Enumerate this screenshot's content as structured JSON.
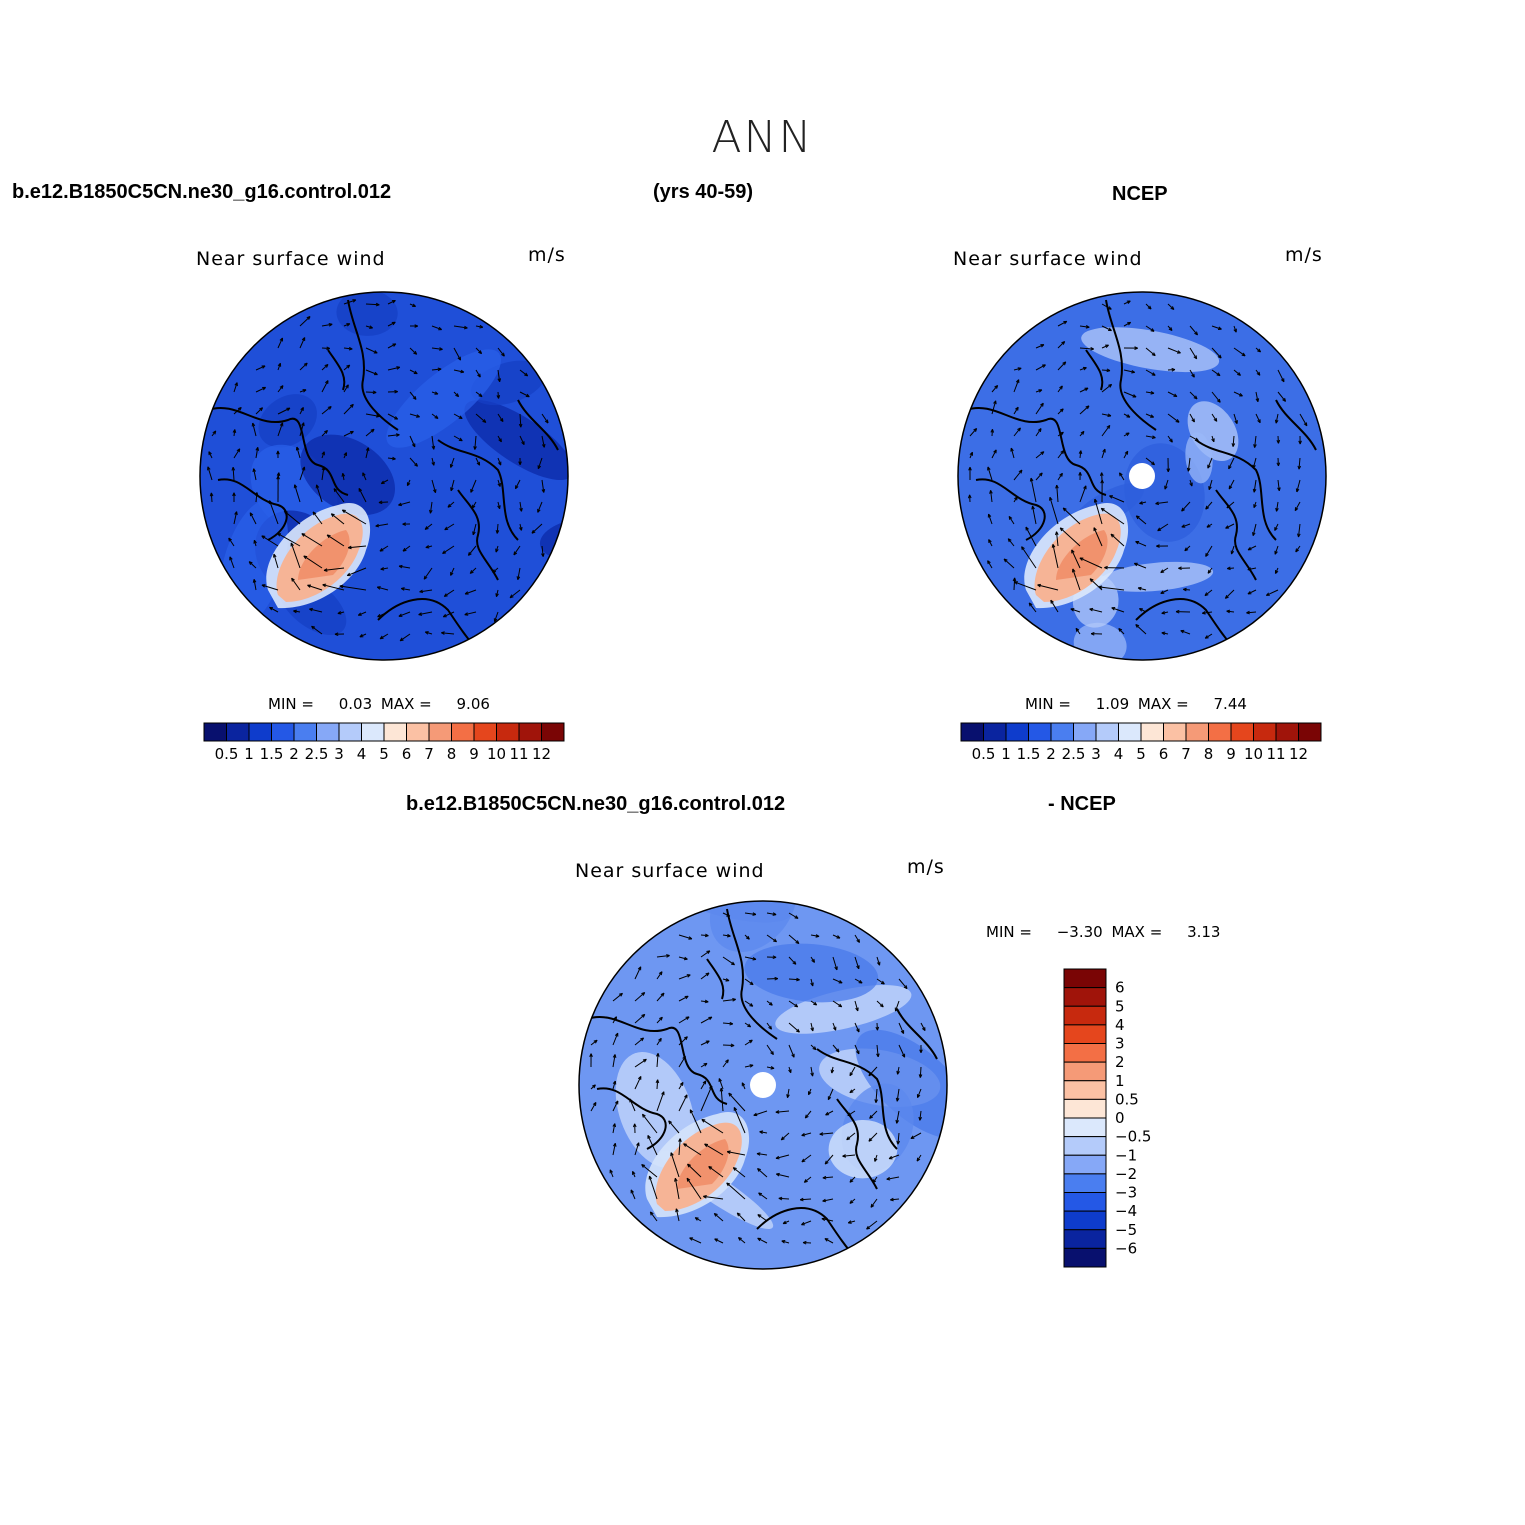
{
  "title": "ANN",
  "case_name": "b.e12.B1850C5CN.ne30_g16.control.012",
  "years": "(yrs 40-59)",
  "obs_name": "NCEP",
  "diff_case_name": "b.e12.B1850C5CN.ne30_g16.control.012",
  "diff_obs_name": "- NCEP",
  "panels": [
    {
      "id": "model",
      "field_label": "Near surface wind",
      "units": "m/s",
      "min_label": "MIN =",
      "min_value": "0.03",
      "max_label": "MAX =",
      "max_value": "9.06",
      "has_pole_hole": false
    },
    {
      "id": "obs",
      "field_label": "Near surface wind",
      "units": "m/s",
      "min_label": "MIN =",
      "min_value": "1.09",
      "max_label": "MAX =",
      "max_value": "7.44",
      "has_pole_hole": true
    },
    {
      "id": "diff",
      "field_label": "Near surface wind",
      "units": "m/s",
      "min_label": "MIN =",
      "min_value": "-3.30",
      "max_label": "MAX =",
      "max_value": "3.13",
      "has_pole_hole": true
    }
  ],
  "colorbar_abs": {
    "colors": [
      "#08106e",
      "#0a249f",
      "#0e3ccc",
      "#2458e6",
      "#4a7ef0",
      "#86a8f7",
      "#b4cbfa",
      "#dbe8fc",
      "#fde6d6",
      "#fbc1a4",
      "#f59a77",
      "#f36f45",
      "#e5461d",
      "#c7290e",
      "#a0140a",
      "#7a0505"
    ],
    "labels": [
      "0.5",
      "1",
      "1.5",
      "2",
      "2.5",
      "3",
      "4",
      "5",
      "6",
      "7",
      "8",
      "9",
      "10",
      "11",
      "12"
    ]
  },
  "colorbar_diff": {
    "colors": [
      "#08106e",
      "#0a249f",
      "#0e3ccc",
      "#2458e6",
      "#4a7ef0",
      "#86a8f7",
      "#b4cbfa",
      "#dbe8fc",
      "#fde6d6",
      "#fbc1a4",
      "#f59a77",
      "#f36f45",
      "#e5461d",
      "#c7290e",
      "#a0140a",
      "#7a0505"
    ],
    "labels": [
      "-6",
      "-5",
      "-4",
      "-3",
      "-2",
      "-1",
      "-0.5",
      "0",
      "0.5",
      "1",
      "2",
      "3",
      "4",
      "5",
      "6"
    ]
  },
  "colors": {
    "model_base": "#1f4fd8",
    "model_dark": "#0c2aa8",
    "obs_base": "#3c6ee6",
    "obs_light": "#b4cbfa",
    "diff_base": "#6e97f2",
    "diff_light": "#c9dafb",
    "warm": "#f6b496",
    "warm_strong": "#f08a63",
    "coast": "#000000"
  }
}
